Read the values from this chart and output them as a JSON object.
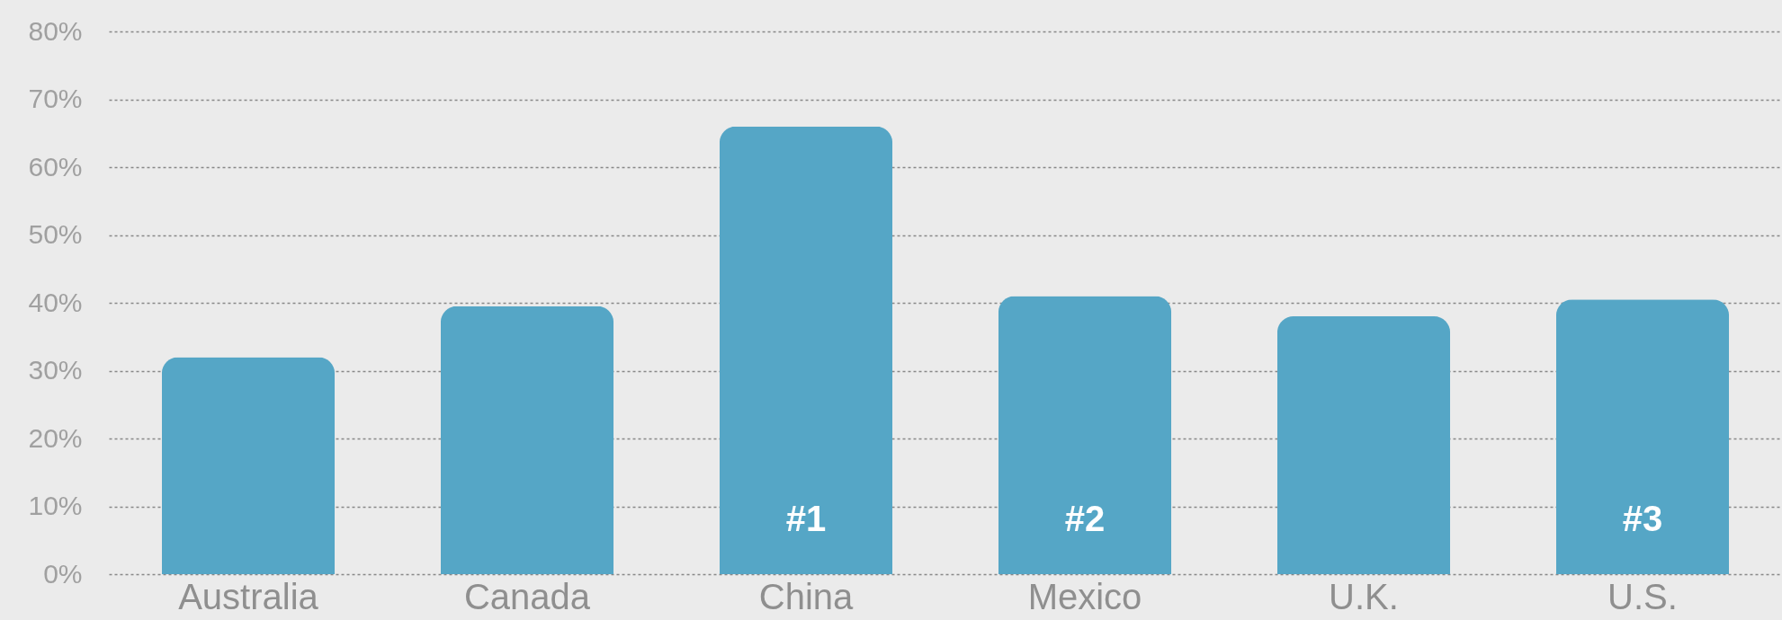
{
  "chart_data": {
    "type": "bar",
    "categories": [
      "Australia",
      "Canada",
      "China",
      "Mexico",
      "U.K.",
      "U.S."
    ],
    "values": [
      32,
      39.5,
      66,
      41,
      38,
      40.5
    ],
    "color": "#55a6c6",
    "ylim": [
      0,
      80
    ],
    "yticks": [
      {
        "value": 0,
        "label": "0%"
      },
      {
        "value": 10,
        "label": "10%"
      },
      {
        "value": 20,
        "label": "20%"
      },
      {
        "value": 30,
        "label": "30%"
      },
      {
        "value": 40,
        "label": "40%"
      },
      {
        "value": 50,
        "label": "50%"
      },
      {
        "value": 60,
        "label": "60%"
      },
      {
        "value": 70,
        "label": "70%"
      },
      {
        "value": 80,
        "label": "80%"
      }
    ],
    "grid": "y",
    "annotations": [
      "#1",
      "#2",
      "#3"
    ]
  }
}
